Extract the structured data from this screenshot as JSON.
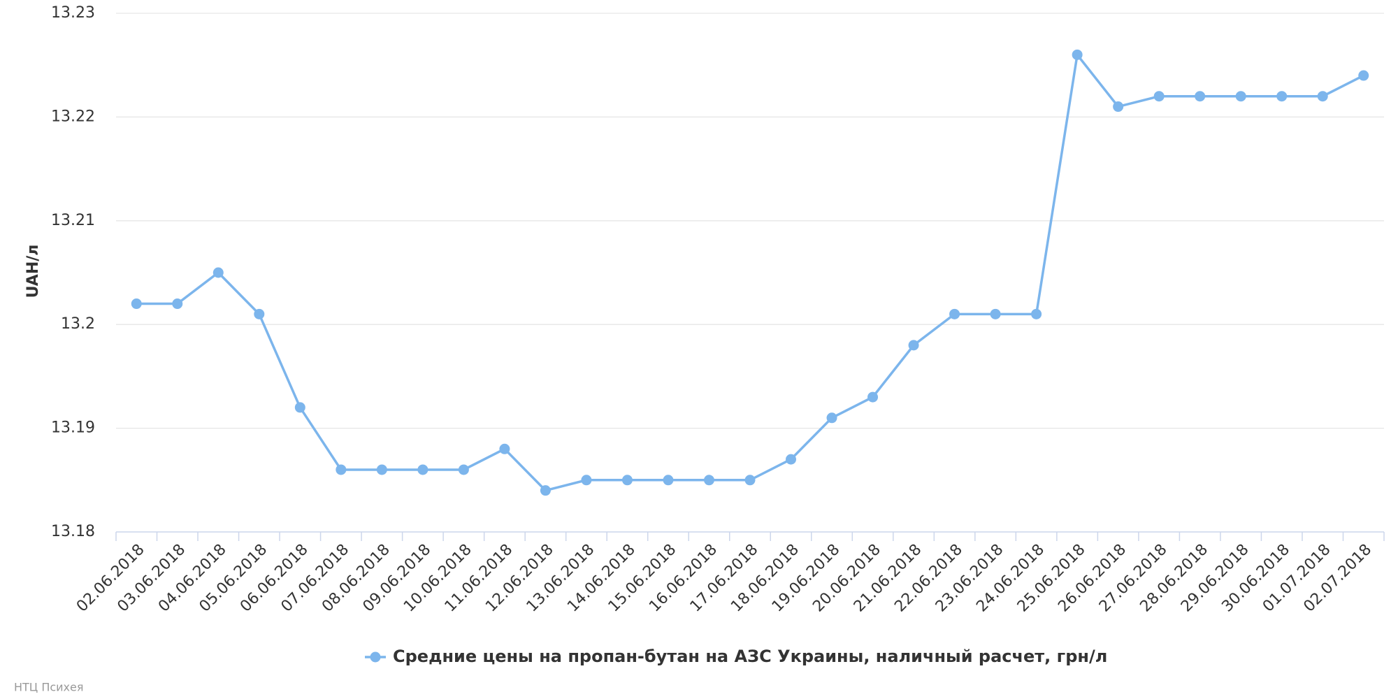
{
  "chart_data": {
    "type": "line",
    "y_label": "UAH/л",
    "credits": "НТЦ Психея",
    "categories": [
      "02.06.2018",
      "03.06.2018",
      "04.06.2018",
      "05.06.2018",
      "06.06.2018",
      "07.06.2018",
      "08.06.2018",
      "09.06.2018",
      "10.06.2018",
      "11.06.2018",
      "12.06.2018",
      "13.06.2018",
      "14.06.2018",
      "15.06.2018",
      "16.06.2018",
      "17.06.2018",
      "18.06.2018",
      "19.06.2018",
      "20.06.2018",
      "21.06.2018",
      "22.06.2018",
      "23.06.2018",
      "24.06.2018",
      "25.06.2018",
      "26.06.2018",
      "27.06.2018",
      "28.06.2018",
      "29.06.2018",
      "30.06.2018",
      "01.07.2018",
      "02.07.2018"
    ],
    "series": [
      {
        "name": "Средние цены на пропан-бутан на АЗС Украины, наличный расчет, грн/л",
        "color": "#7cb5ec",
        "values": [
          13.202,
          13.202,
          13.205,
          13.201,
          13.192,
          13.186,
          13.186,
          13.186,
          13.186,
          13.188,
          13.184,
          13.185,
          13.185,
          13.185,
          13.185,
          13.185,
          13.187,
          13.191,
          13.193,
          13.198,
          13.201,
          13.201,
          13.201,
          13.226,
          13.221,
          13.222,
          13.222,
          13.222,
          13.222,
          13.222,
          13.224
        ]
      }
    ],
    "ylim": [
      13.18,
      13.23
    ],
    "yticks": [
      13.18,
      13.19,
      13.2,
      13.21,
      13.22,
      13.23
    ],
    "grid": true,
    "legend": "bottom"
  }
}
